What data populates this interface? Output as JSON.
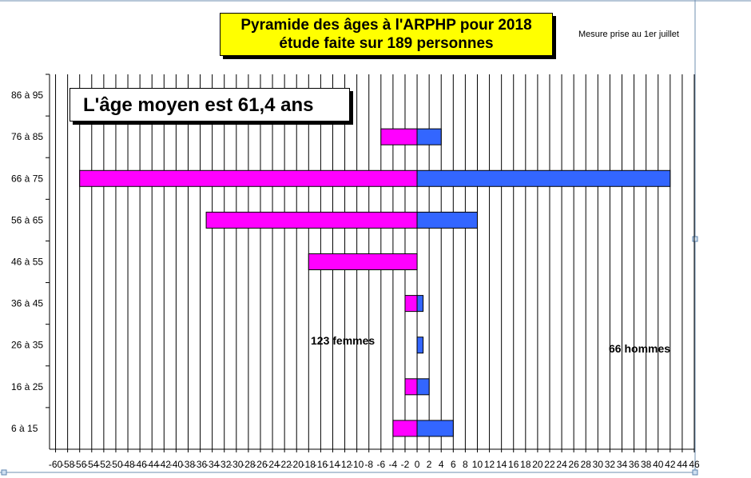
{
  "title": {
    "line1": "Pyramide des âges à l'ARPHP pour 2018",
    "line2": "étude faite sur 189 personnes"
  },
  "note": "Mesure prise au   1er juillet",
  "callout": "L'âge moyen est 61,4 ans",
  "annotations": {
    "women": "123 femmes",
    "men": "66 hommes"
  },
  "colors": {
    "women": "#ff00ff",
    "men": "#3366ff",
    "title_bg": "#ffff00",
    "grid": "#000000"
  },
  "chart_data": {
    "type": "bar",
    "orientation": "horizontal",
    "categories": [
      "86 à 95",
      "76 à 85",
      "66 à 75",
      "56 à 65",
      "46 à 55",
      "36 à 45",
      "26 à 35",
      "16 à 25",
      "6 à 15"
    ],
    "series": [
      {
        "values": [
          0,
          -6,
          -56,
          -35,
          -18,
          -2,
          0,
          -2,
          -4
        ]
      },
      {
        "values": [
          0,
          4,
          42,
          10,
          0,
          1,
          1,
          2,
          6
        ]
      }
    ],
    "xlim": [
      -61,
      46
    ],
    "x_ticks": [
      -60,
      -58,
      -56,
      -54,
      -52,
      -50,
      -48,
      -46,
      -44,
      -42,
      -40,
      -38,
      -36,
      -34,
      -32,
      -30,
      -28,
      -26,
      -24,
      -22,
      -20,
      -18,
      -16,
      -14,
      -12,
      -10,
      -8,
      -6,
      -4,
      -2,
      0,
      2,
      4,
      6,
      8,
      10,
      12,
      14,
      16,
      18,
      20,
      22,
      24,
      26,
      28,
      30,
      32,
      34,
      36,
      38,
      40,
      42,
      44,
      46
    ],
    "grid": true
  }
}
